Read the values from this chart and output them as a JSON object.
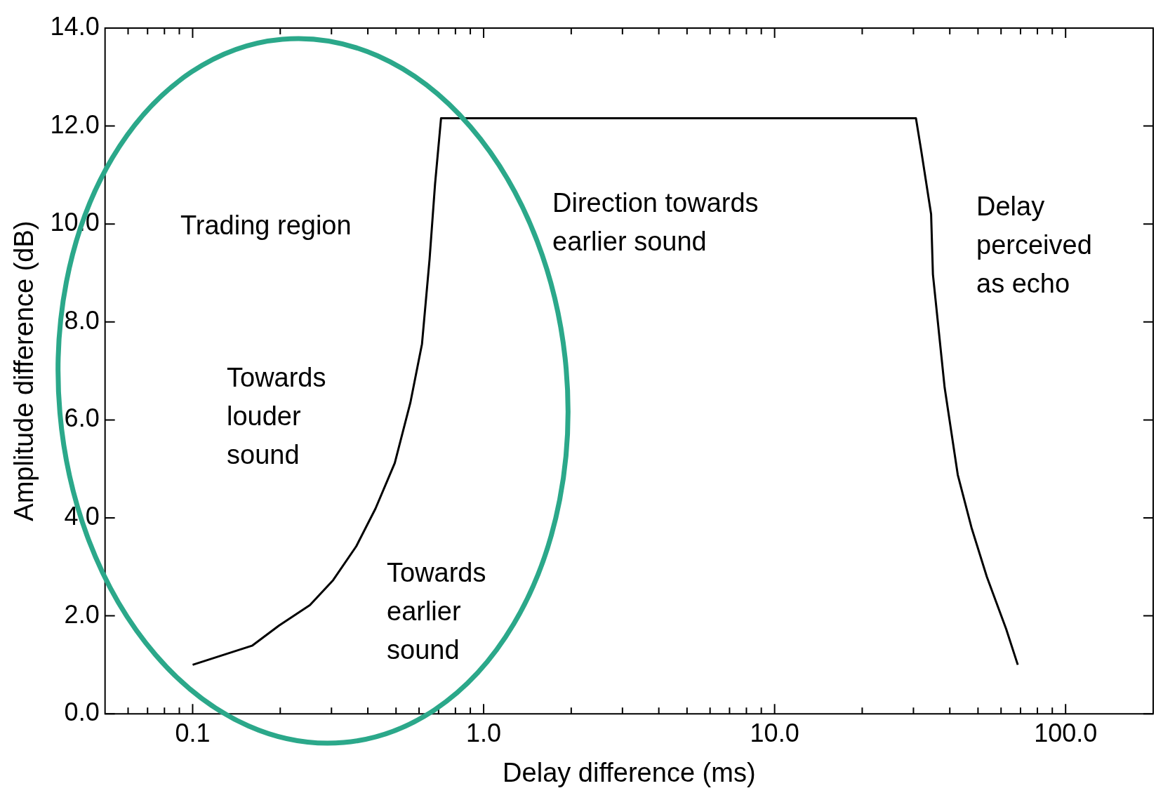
{
  "chart_data": {
    "type": "line",
    "xlabel": "Delay difference (ms)",
    "ylabel": "Amplitude difference (dB)",
    "log": "x",
    "grid": false,
    "legend": false,
    "marker": "none",
    "line_style": "solid",
    "xlim": [
      0.05,
      200
    ],
    "ylim": [
      0,
      14
    ],
    "xticks": [
      {
        "value": 0.06,
        "label": null
      },
      {
        "value": 0.07,
        "label": null
      },
      {
        "value": 0.08,
        "label": null
      },
      {
        "value": 0.09,
        "label": null
      },
      {
        "value": 0.1,
        "label": "0.1"
      },
      {
        "value": 0.2,
        "label": null
      },
      {
        "value": 0.3,
        "label": null
      },
      {
        "value": 0.4,
        "label": null
      },
      {
        "value": 0.5,
        "label": null
      },
      {
        "value": 0.6,
        "label": null
      },
      {
        "value": 0.7,
        "label": null
      },
      {
        "value": 0.8,
        "label": null
      },
      {
        "value": 0.9,
        "label": null
      },
      {
        "value": 1,
        "label": "1.0"
      },
      {
        "value": 2,
        "label": null
      },
      {
        "value": 3,
        "label": null
      },
      {
        "value": 4,
        "label": null
      },
      {
        "value": 5,
        "label": null
      },
      {
        "value": 6,
        "label": null
      },
      {
        "value": 7,
        "label": null
      },
      {
        "value": 8,
        "label": null
      },
      {
        "value": 9,
        "label": null
      },
      {
        "value": 10,
        "label": "10.0"
      },
      {
        "value": 20,
        "label": null
      },
      {
        "value": 30,
        "label": null
      },
      {
        "value": 40,
        "label": null
      },
      {
        "value": 50,
        "label": null
      },
      {
        "value": 60,
        "label": null
      },
      {
        "value": 70,
        "label": null
      },
      {
        "value": 80,
        "label": null
      },
      {
        "value": 90,
        "label": null
      },
      {
        "value": 100,
        "label": "100.0"
      }
    ],
    "yticks": [
      {
        "value": 0,
        "label": "0.0"
      },
      {
        "value": 2,
        "label": "2.0"
      },
      {
        "value": 4,
        "label": "4.0"
      },
      {
        "value": 6,
        "label": "6.0"
      },
      {
        "value": 8,
        "label": "8.0"
      },
      {
        "value": 10,
        "label": "10.0"
      },
      {
        "value": 12,
        "label": "12.0"
      },
      {
        "value": 14,
        "label": "14.0"
      }
    ],
    "series": [
      {
        "color": "#000000",
        "x": [
          0.1,
          0.16,
          0.198,
          0.253,
          0.304,
          0.365,
          0.425,
          0.495,
          0.56,
          0.614,
          0.652,
          0.681,
          0.714,
          30.6,
          31.9,
          34.5,
          35,
          38.4,
          42.6,
          47.5,
          53.6,
          62.5,
          68.5
        ],
        "values": [
          1.0,
          1.39,
          1.8,
          2.22,
          2.73,
          3.42,
          4.19,
          5.12,
          6.35,
          7.55,
          9.28,
          10.82,
          12.16,
          12.16,
          11.5,
          10.2,
          8.97,
          6.66,
          4.88,
          3.8,
          2.8,
          1.73,
          1.0
        ]
      }
    ],
    "annotations": [
      "Trading region",
      "Towards\nlouder\nsound",
      "Towards\nearlier\nsound",
      "Direction towards\nearlier sound",
      "Delay\nperceived\nas echo"
    ]
  }
}
